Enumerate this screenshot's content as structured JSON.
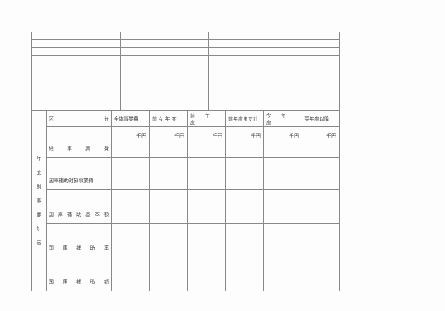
{
  "side_label": [
    "年",
    "度",
    "別",
    "事",
    "業",
    "計",
    "画"
  ],
  "header": {
    "category": [
      "区",
      "分"
    ],
    "columns": [
      "全体事業費",
      "前 々 年 度",
      "前　　年　　度",
      "前年度まで計",
      "今　　年　　度",
      "翌年度以降"
    ]
  },
  "unit": "千円",
  "rows": [
    {
      "label": [
        "総",
        "事",
        "業",
        "費"
      ]
    },
    {
      "label": [
        "国庫補助対象事業費"
      ]
    },
    {
      "label": [
        "国",
        "庫",
        "補",
        "助",
        "基",
        "本",
        "額"
      ]
    },
    {
      "label": [
        "国",
        "庫",
        "補",
        "助",
        "率"
      ]
    },
    {
      "label": [
        "国",
        "庫",
        "補",
        "助",
        "額"
      ]
    }
  ]
}
